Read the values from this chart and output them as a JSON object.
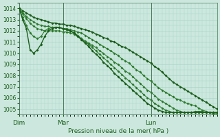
{
  "xlabel": "Pression niveau de la mer( hPa )",
  "background_color": "#cce8de",
  "grid_color": "#aad4c8",
  "ylim": [
    1004.5,
    1014.5
  ],
  "yticks": [
    1005,
    1006,
    1007,
    1008,
    1009,
    1010,
    1011,
    1012,
    1013,
    1014
  ],
  "day_labels": [
    "Dim",
    "Mar",
    "Lun"
  ],
  "day_positions": [
    0,
    12,
    36
  ],
  "n_pts": 55,
  "series": [
    [
      1014.0,
      1013.8,
      1013.6,
      1013.4,
      1013.2,
      1013.1,
      1013.0,
      1012.9,
      1012.8,
      1012.7,
      1012.7,
      1012.6,
      1012.6,
      1012.5,
      1012.5,
      1012.4,
      1012.3,
      1012.2,
      1012.1,
      1012.0,
      1011.9,
      1011.7,
      1011.6,
      1011.4,
      1011.3,
      1011.1,
      1011.0,
      1010.8,
      1010.6,
      1010.5,
      1010.3,
      1010.1,
      1009.9,
      1009.7,
      1009.5,
      1009.3,
      1009.1,
      1008.8,
      1008.6,
      1008.3,
      1008.0,
      1007.7,
      1007.4,
      1007.2,
      1007.0,
      1006.8,
      1006.6,
      1006.4,
      1006.2,
      1006.0,
      1005.8,
      1005.6,
      1005.4,
      1005.2,
      1005.0
    ],
    [
      1014.0,
      1013.6,
      1013.3,
      1013.0,
      1012.8,
      1012.6,
      1012.5,
      1012.4,
      1012.4,
      1012.3,
      1012.3,
      1012.3,
      1012.2,
      1012.2,
      1012.1,
      1012.0,
      1011.9,
      1011.8,
      1011.6,
      1011.4,
      1011.2,
      1011.0,
      1010.8,
      1010.6,
      1010.4,
      1010.2,
      1010.0,
      1009.8,
      1009.5,
      1009.3,
      1009.1,
      1008.8,
      1008.5,
      1008.3,
      1008.0,
      1007.7,
      1007.5,
      1007.2,
      1006.9,
      1006.7,
      1006.5,
      1006.3,
      1006.1,
      1005.9,
      1005.8,
      1005.6,
      1005.5,
      1005.4,
      1005.3,
      1005.1,
      1004.9,
      1004.8,
      1004.7,
      1004.6,
      1004.6
    ],
    [
      1014.0,
      1013.5,
      1013.1,
      1012.7,
      1012.4,
      1012.2,
      1012.1,
      1012.0,
      1012.0,
      1012.0,
      1012.0,
      1012.0,
      1011.9,
      1011.9,
      1011.8,
      1011.7,
      1011.5,
      1011.3,
      1011.1,
      1010.9,
      1010.7,
      1010.5,
      1010.2,
      1010.0,
      1009.7,
      1009.5,
      1009.2,
      1009.0,
      1008.7,
      1008.4,
      1008.2,
      1007.9,
      1007.6,
      1007.3,
      1007.0,
      1006.7,
      1006.5,
      1006.2,
      1005.9,
      1005.7,
      1005.5,
      1005.3,
      1005.1,
      1004.9,
      1004.8,
      1004.7,
      1004.7,
      1004.7,
      1004.8,
      1004.8,
      1004.8,
      1004.7,
      1004.7,
      1004.7,
      1004.7
    ],
    [
      1014.0,
      1013.2,
      1012.5,
      1011.8,
      1011.5,
      1011.3,
      1011.5,
      1012.0,
      1012.2,
      1012.3,
      1012.3,
      1012.3,
      1012.2,
      1012.1,
      1012.0,
      1011.8,
      1011.6,
      1011.3,
      1011.0,
      1010.8,
      1010.5,
      1010.2,
      1009.9,
      1009.6,
      1009.3,
      1009.0,
      1008.7,
      1008.4,
      1008.1,
      1007.8,
      1007.5,
      1007.2,
      1006.9,
      1006.6,
      1006.3,
      1006.0,
      1005.8,
      1005.5,
      1005.3,
      1005.1,
      1004.9,
      1004.8,
      1004.7,
      1004.7,
      1004.7,
      1004.7,
      1004.7,
      1004.7,
      1004.7,
      1004.7,
      1004.7,
      1004.7,
      1004.7,
      1004.7,
      1004.7
    ],
    [
      1014.0,
      1013.0,
      1012.2,
      1010.3,
      1010.0,
      1010.3,
      1010.8,
      1011.5,
      1012.0,
      1012.2,
      1012.3,
      1012.3,
      1012.2,
      1012.1,
      1012.0,
      1011.8,
      1011.5,
      1011.2,
      1010.9,
      1010.6,
      1010.2,
      1009.9,
      1009.6,
      1009.2,
      1008.9,
      1008.6,
      1008.2,
      1007.9,
      1007.6,
      1007.3,
      1007.0,
      1006.7,
      1006.4,
      1006.1,
      1005.8,
      1005.5,
      1005.3,
      1005.1,
      1004.9,
      1004.8,
      1004.7,
      1004.7,
      1004.7,
      1004.7,
      1004.7,
      1004.7,
      1004.7,
      1004.7,
      1004.7,
      1004.7,
      1004.7,
      1004.7,
      1004.7,
      1004.7,
      1004.7
    ]
  ],
  "colors": [
    "#1a5c1a",
    "#2d7a2d",
    "#2d7a2d",
    "#2d7a2d",
    "#1a5c1a"
  ],
  "linewidths": [
    1.0,
    0.8,
    0.8,
    0.8,
    1.0
  ],
  "markersize": 2.0
}
